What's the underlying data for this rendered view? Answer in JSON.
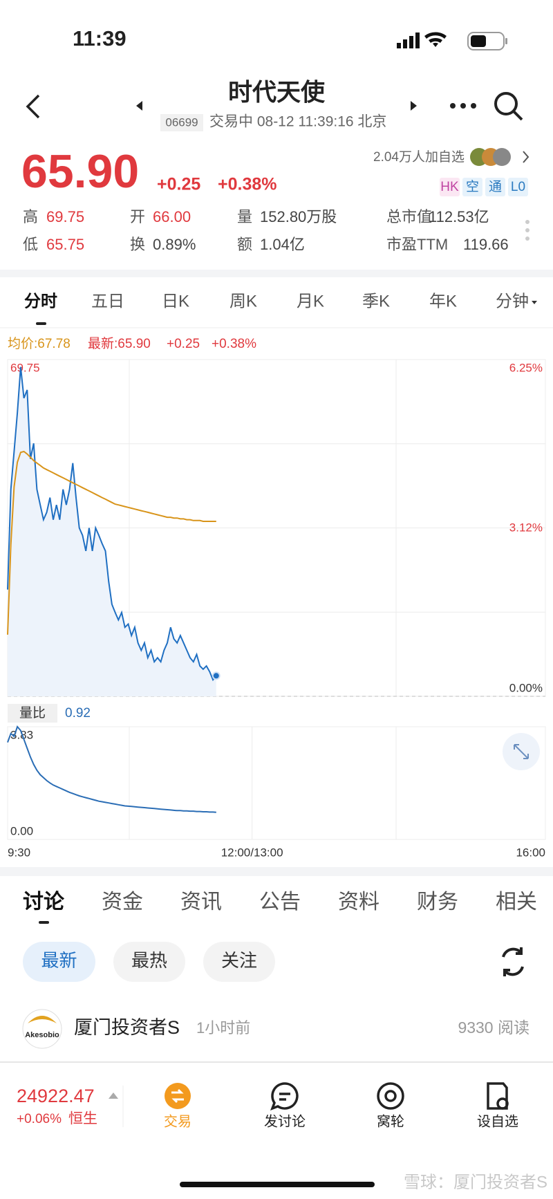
{
  "status_bar": {
    "time": "11:39"
  },
  "header": {
    "title": "时代天使",
    "code": "06699",
    "status": "交易中 08-12 11:39:16 北京"
  },
  "quote": {
    "price": "65.90",
    "change": "+0.25",
    "change_pct": "+0.38%",
    "watchers": "2.04万人加自选",
    "tags": [
      "HK",
      "空",
      "通",
      "L0"
    ],
    "stats": [
      {
        "label": "高",
        "value": "69.75"
      },
      {
        "label": "开",
        "value": "66.00"
      },
      {
        "label": "量",
        "value": "152.80万股"
      },
      {
        "label": "总市值",
        "value": "112.53亿"
      },
      {
        "label": "低",
        "value": "65.75"
      },
      {
        "label": "换",
        "value": "0.89%"
      },
      {
        "label": "额",
        "value": "1.04亿"
      },
      {
        "label": "市盈TTM",
        "value": "119.66"
      }
    ]
  },
  "chart_tabs": [
    "分时",
    "五日",
    "日K",
    "周K",
    "月K",
    "季K",
    "年K",
    "分钟"
  ],
  "chart_data": [
    {
      "type": "line",
      "legend": {
        "avg_label": "均价:67.78",
        "latest_label": "最新:65.90",
        "change": "+0.25",
        "change_pct": "+0.38%"
      },
      "x": [
        0,
        2,
        4,
        6,
        8,
        10,
        12,
        14,
        16,
        18,
        20,
        22,
        24,
        26,
        28,
        30,
        32,
        34,
        36,
        38,
        40,
        42,
        44,
        46,
        48,
        50,
        52,
        54,
        56,
        58,
        60,
        62,
        64,
        66,
        68,
        70,
        72,
        74,
        76,
        78,
        80,
        82,
        84,
        86,
        88,
        90,
        92,
        94,
        96,
        98,
        100,
        102,
        104,
        106,
        108,
        110,
        112,
        114,
        116,
        118,
        120,
        122,
        124,
        126,
        128
      ],
      "series": [
        {
          "color": "#1f6fc2",
          "area_color": "#edf3fb",
          "marker_last": true,
          "values": [
            66.95,
            68.17,
            68.63,
            69.1,
            69.66,
            69.28,
            69.38,
            68.54,
            68.73,
            68.17,
            67.98,
            67.8,
            67.89,
            68.07,
            67.8,
            67.98,
            67.8,
            68.17,
            67.98,
            68.17,
            68.49,
            68.07,
            67.7,
            67.61,
            67.42,
            67.7,
            67.42,
            67.7,
            67.61,
            67.51,
            67.42,
            67.05,
            66.77,
            66.67,
            66.58,
            66.67,
            66.49,
            66.53,
            66.39,
            66.49,
            66.3,
            66.21,
            66.3,
            66.12,
            66.21,
            66.07,
            66.12,
            66.07,
            66.21,
            66.3,
            66.49,
            66.35,
            66.3,
            66.39,
            66.3,
            66.21,
            66.12,
            66.07,
            66.16,
            66.02,
            65.98,
            66.02,
            65.95,
            65.85,
            65.9
          ]
        },
        {
          "color": "#d8941a",
          "values": [
            66.4,
            67.5,
            68.2,
            68.5,
            68.62,
            68.63,
            68.6,
            68.56,
            68.52,
            68.49,
            68.46,
            68.43,
            68.41,
            68.39,
            68.37,
            68.35,
            68.33,
            68.31,
            68.29,
            68.27,
            68.25,
            68.23,
            68.21,
            68.19,
            68.17,
            68.15,
            68.13,
            68.11,
            68.09,
            68.07,
            68.05,
            68.03,
            68.01,
            67.99,
            67.98,
            67.97,
            67.96,
            67.95,
            67.94,
            67.93,
            67.92,
            67.91,
            67.9,
            67.89,
            67.88,
            67.87,
            67.86,
            67.85,
            67.84,
            67.83,
            67.83,
            67.82,
            67.82,
            67.81,
            67.81,
            67.8,
            67.8,
            67.79,
            67.79,
            67.79,
            67.78,
            67.78,
            67.78,
            67.78,
            67.78
          ]
        }
      ],
      "xlim": [
        0,
        330
      ],
      "ylim": [
        65.65,
        69.75
      ],
      "yticks": [
        65.65,
        67.7,
        69.75
      ],
      "y2lim": [
        0,
        6.25
      ],
      "y2ticks": [
        {
          "value": 0,
          "label": "0.00%"
        },
        {
          "value": 3.12,
          "label": "3.12%"
        },
        {
          "value": 6.25,
          "label": "6.25%"
        }
      ],
      "grid": true
    },
    {
      "type": "line",
      "legend": {
        "label": "量比"
      },
      "x": [
        0,
        2,
        4,
        6,
        8,
        10,
        12,
        14,
        16,
        18,
        20,
        22,
        24,
        26,
        28,
        30,
        32,
        34,
        36,
        38,
        40,
        42,
        44,
        46,
        48,
        50,
        52,
        54,
        56,
        58,
        60,
        62,
        64,
        66,
        68,
        70,
        72,
        74,
        76,
        78,
        80,
        82,
        84,
        86,
        88,
        90,
        92,
        94,
        96,
        98,
        100,
        102,
        104,
        106,
        108,
        110,
        112,
        114,
        116,
        118,
        120,
        122,
        124,
        126,
        128
      ],
      "series": [
        {
          "color": "#2a6db5",
          "values": [
            3.3,
            3.6,
            3.5,
            3.83,
            3.7,
            3.4,
            3.1,
            2.8,
            2.55,
            2.35,
            2.2,
            2.1,
            2.0,
            1.92,
            1.85,
            1.8,
            1.75,
            1.7,
            1.65,
            1.6,
            1.56,
            1.52,
            1.48,
            1.45,
            1.42,
            1.39,
            1.36,
            1.33,
            1.3,
            1.28,
            1.26,
            1.24,
            1.22,
            1.2,
            1.18,
            1.16,
            1.14,
            1.13,
            1.12,
            1.11,
            1.1,
            1.09,
            1.08,
            1.07,
            1.06,
            1.05,
            1.04,
            1.03,
            1.02,
            1.01,
            1.0,
            0.99,
            0.98,
            0.98,
            0.97,
            0.97,
            0.96,
            0.96,
            0.95,
            0.95,
            0.94,
            0.94,
            0.93,
            0.93,
            0.92
          ]
        }
      ],
      "xlim": [
        0,
        330
      ],
      "ylim": [
        0,
        3.83
      ],
      "yticks": [
        {
          "value": 0,
          "label": "0.00"
        },
        3.83
      ],
      "xticks": [
        {
          "value": 0,
          "label": "9:30"
        },
        {
          "value": 150,
          "label": "12:00/13:00"
        },
        {
          "value": 330,
          "label": "16:00"
        }
      ],
      "grid": true
    }
  ],
  "discussion_tabs": [
    "讨论",
    "资金",
    "资讯",
    "公告",
    "资料",
    "财务",
    "相关"
  ],
  "filters": [
    "最新",
    "最热",
    "关注"
  ],
  "post": {
    "avatar_text": "Akesobio",
    "author": "厦门投资者S",
    "time": "1小时前",
    "reads": "9330 阅读"
  },
  "bottom_bar": {
    "index_value": "24922.47",
    "index_change": "+0.06%",
    "index_name": "恒生",
    "actions": [
      "交易",
      "发讨论",
      "窝轮",
      "设自选"
    ]
  },
  "watermark": "雪球：厦门投资者S"
}
